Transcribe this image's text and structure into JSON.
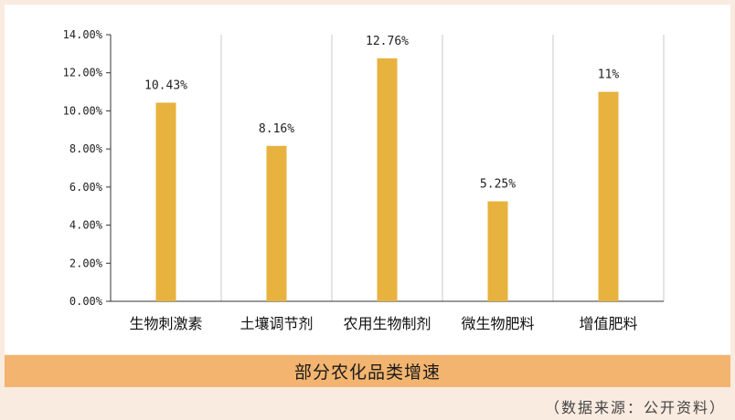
{
  "chart_data": {
    "type": "bar",
    "title": "",
    "xlabel": "",
    "ylabel": "",
    "categories": [
      "生物刺激素",
      "土壤调节剂",
      "农用生物制剂",
      "微生物肥料",
      "增值肥料"
    ],
    "values": [
      10.43,
      8.16,
      12.76,
      5.25,
      11
    ],
    "data_labels": [
      "10.43%",
      "8.16%",
      "12.76%",
      "5.25%",
      "11%"
    ],
    "ylim": [
      0,
      14
    ],
    "yticks": [
      0,
      2,
      4,
      6,
      8,
      10,
      12,
      14
    ],
    "ytick_labels": [
      "0.00%",
      "2.00%",
      "4.00%",
      "6.00%",
      "8.00%",
      "10.00%",
      "12.00%",
      "14.00%"
    ],
    "grid": "vertical separators between categories",
    "bar_color": "#e7b23e"
  },
  "caption": "部分农化品类增速",
  "source": "（数据来源：公开资料）",
  "colors": {
    "background": "#faebe0",
    "caption_bar": "#f3b46f",
    "bar": "#e7b23e"
  }
}
